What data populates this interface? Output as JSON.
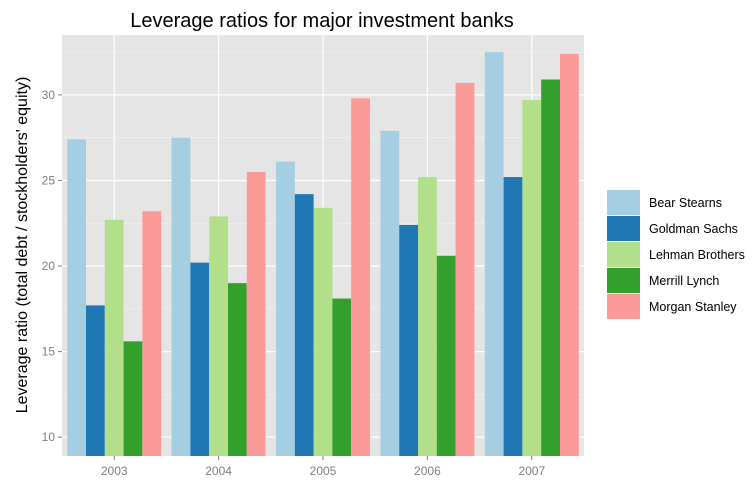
{
  "chart_data": {
    "type": "bar",
    "title": "Leverage ratios for major investment banks",
    "xlabel": "",
    "ylabel": "Leverage ratio (total debt / stockholders' equity)",
    "categories": [
      "2003",
      "2004",
      "2005",
      "2006",
      "2007"
    ],
    "series": [
      {
        "name": "Bear Stearns",
        "color": "#a6cee3",
        "values": [
          27.4,
          27.5,
          26.1,
          27.9,
          32.5
        ]
      },
      {
        "name": "Goldman Sachs",
        "color": "#1f78b4",
        "values": [
          17.7,
          20.2,
          24.2,
          22.4,
          25.2
        ]
      },
      {
        "name": "Lehman Brothers",
        "color": "#b2df8a",
        "values": [
          22.7,
          22.9,
          23.4,
          25.2,
          29.7
        ]
      },
      {
        "name": "Merrill Lynch",
        "color": "#33a02c",
        "values": [
          15.6,
          19.0,
          18.1,
          20.6,
          30.9
        ]
      },
      {
        "name": "Morgan Stanley",
        "color": "#fb9a99",
        "values": [
          23.2,
          25.5,
          29.8,
          30.7,
          32.4
        ]
      }
    ],
    "yticks": [
      10,
      15,
      20,
      25,
      30
    ],
    "ylim": [
      8.9,
      33.5
    ],
    "grid": true,
    "legend_position": "right",
    "panel_background": "#e5e5e5",
    "grid_major_color": "#ffffff"
  }
}
